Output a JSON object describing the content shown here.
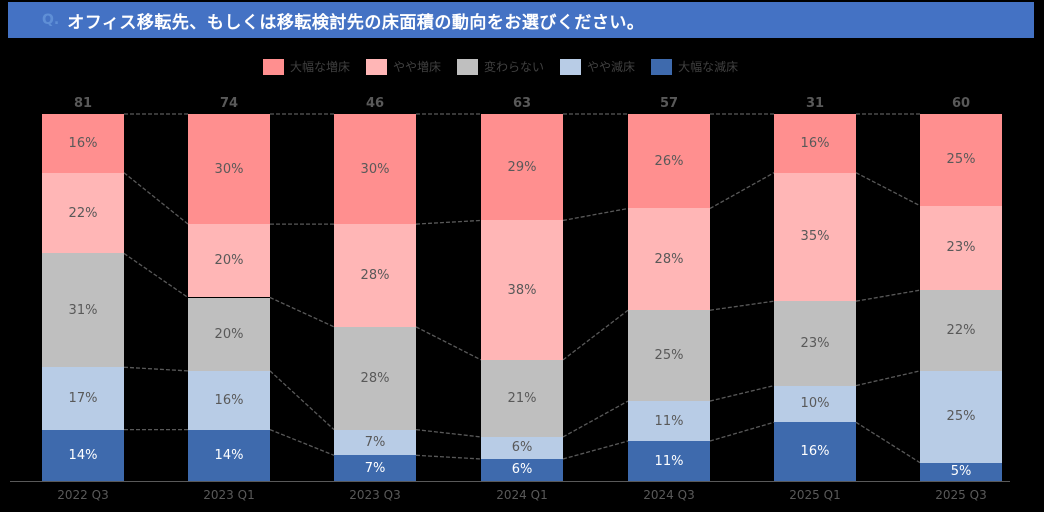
{
  "header": {
    "icon": "Q.",
    "title": "オフィス移転先、もしくは移転検討先の床面積の動向をお選びください。",
    "background": "#4472c4"
  },
  "legend": [
    {
      "label": "大幅な増床",
      "color": "#ff8f8f"
    },
    {
      "label": "やや増床",
      "color": "#ffb6b6"
    },
    {
      "label": "変わらない",
      "color": "#bfbfbf"
    },
    {
      "label": "やや減床",
      "color": "#b8cce6"
    },
    {
      "label": "大幅な減床",
      "color": "#3e6aad"
    }
  ],
  "chart_data": {
    "type": "bar",
    "stacked": true,
    "normalized_100": true,
    "title": "オフィス移転先、もしくは移転検討先の床面積の動向をお選びください。",
    "categories": [
      "2022 Q3",
      "2023 Q1",
      "2023 Q3",
      "2024 Q1",
      "2024 Q3",
      "2025 Q1",
      "2025 Q3"
    ],
    "totals": [
      81,
      74,
      46,
      63,
      57,
      31,
      60
    ],
    "series": [
      {
        "name": "大幅な増床",
        "color": "#ff8f8f",
        "values": [
          16,
          30,
          30,
          29,
          26,
          16,
          25
        ]
      },
      {
        "name": "やや増床",
        "color": "#ffb6b6",
        "values": [
          22,
          20,
          28,
          38,
          28,
          35,
          23
        ]
      },
      {
        "name": "変わらない",
        "color": "#bfbfbf",
        "values": [
          31,
          20,
          28,
          21,
          25,
          23,
          22
        ]
      },
      {
        "name": "やや減床",
        "color": "#b8cce6",
        "values": [
          17,
          16,
          7,
          6,
          11,
          10,
          25
        ]
      },
      {
        "name": "大幅な減床",
        "color": "#3e6aad",
        "values": [
          14,
          14,
          7,
          6,
          11,
          16,
          5
        ]
      }
    ],
    "xlabel": "",
    "ylabel": "",
    "ylim": [
      0,
      100
    ],
    "grid": false,
    "legend_position": "top",
    "connector_lines": "dashed"
  }
}
